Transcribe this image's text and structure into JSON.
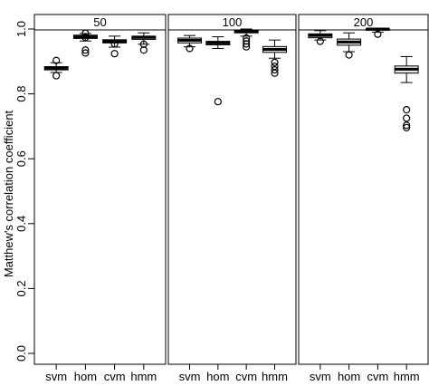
{
  "chart_data": {
    "type": "boxplot",
    "ylabel": "Matthew's correlation coefficient",
    "ylim": [
      0,
      1
    ],
    "y_ticks": [
      0.0,
      0.2,
      0.4,
      0.6,
      0.8,
      1.0
    ],
    "y_tick_labels": [
      "0.0",
      "0.2",
      "0.4",
      "0.6",
      "0.8",
      "1.0"
    ],
    "categories": [
      "svm",
      "hom",
      "cvm",
      "hmm"
    ],
    "colors": {
      "box_fill": "#e6e6e6",
      "stroke": "#000000"
    },
    "panels": [
      {
        "label": "50",
        "boxes": [
          {
            "category": "svm",
            "whisker_low": 0.866,
            "q1": 0.874,
            "median": 0.879,
            "q3": 0.884,
            "whisker_high": 0.896,
            "outliers": [
              0.903,
              0.856
            ]
          },
          {
            "category": "hom",
            "whisker_low": 0.963,
            "q1": 0.971,
            "median": 0.976,
            "q3": 0.981,
            "whisker_high": 0.986,
            "outliers": [
              0.987,
              0.974,
              0.935,
              0.926
            ]
          },
          {
            "category": "cvm",
            "whisker_low": 0.944,
            "q1": 0.957,
            "median": 0.962,
            "q3": 0.967,
            "whisker_high": 0.978,
            "outliers": [
              0.954,
              0.924
            ]
          },
          {
            "category": "hmm",
            "whisker_low": 0.953,
            "q1": 0.968,
            "median": 0.974,
            "q3": 0.978,
            "whisker_high": 0.988,
            "outliers": [
              0.953,
              0.935
            ]
          }
        ]
      },
      {
        "label": "100",
        "boxes": [
          {
            "category": "svm",
            "whisker_low": 0.945,
            "q1": 0.957,
            "median": 0.965,
            "q3": 0.972,
            "whisker_high": 0.98,
            "outliers": [
              0.94
            ]
          },
          {
            "category": "hom",
            "whisker_low": 0.94,
            "q1": 0.951,
            "median": 0.957,
            "q3": 0.962,
            "whisker_high": 0.976,
            "outliers": [
              0.776
            ]
          },
          {
            "category": "cvm",
            "whisker_low": 0.978,
            "q1": 0.988,
            "median": 0.992,
            "q3": 0.996,
            "whisker_high": 1.0,
            "outliers": [
              0.972,
              0.963,
              0.954,
              0.945
            ]
          },
          {
            "category": "hmm",
            "whisker_low": 0.91,
            "q1": 0.928,
            "median": 0.937,
            "q3": 0.946,
            "whisker_high": 0.966,
            "outliers": [
              0.897,
              0.885,
              0.874,
              0.864
            ]
          }
        ]
      },
      {
        "label": "200",
        "boxes": [
          {
            "category": "svm",
            "whisker_low": 0.966,
            "q1": 0.973,
            "median": 0.98,
            "q3": 0.985,
            "whisker_high": 0.995,
            "outliers": [
              0.962
            ]
          },
          {
            "category": "hom",
            "whisker_low": 0.93,
            "q1": 0.95,
            "median": 0.96,
            "q3": 0.969,
            "whisker_high": 0.988,
            "outliers": [
              0.92
            ]
          },
          {
            "category": "cvm",
            "whisker_low": 0.99,
            "q1": 0.996,
            "median": 1.0,
            "q3": 1.0,
            "whisker_high": 1.0,
            "outliers": [
              0.984
            ]
          },
          {
            "category": "hmm",
            "whisker_low": 0.835,
            "q1": 0.864,
            "median": 0.876,
            "q3": 0.886,
            "whisker_high": 0.915,
            "outliers": [
              0.751,
              0.725,
              0.703,
              0.696
            ]
          }
        ]
      }
    ]
  }
}
